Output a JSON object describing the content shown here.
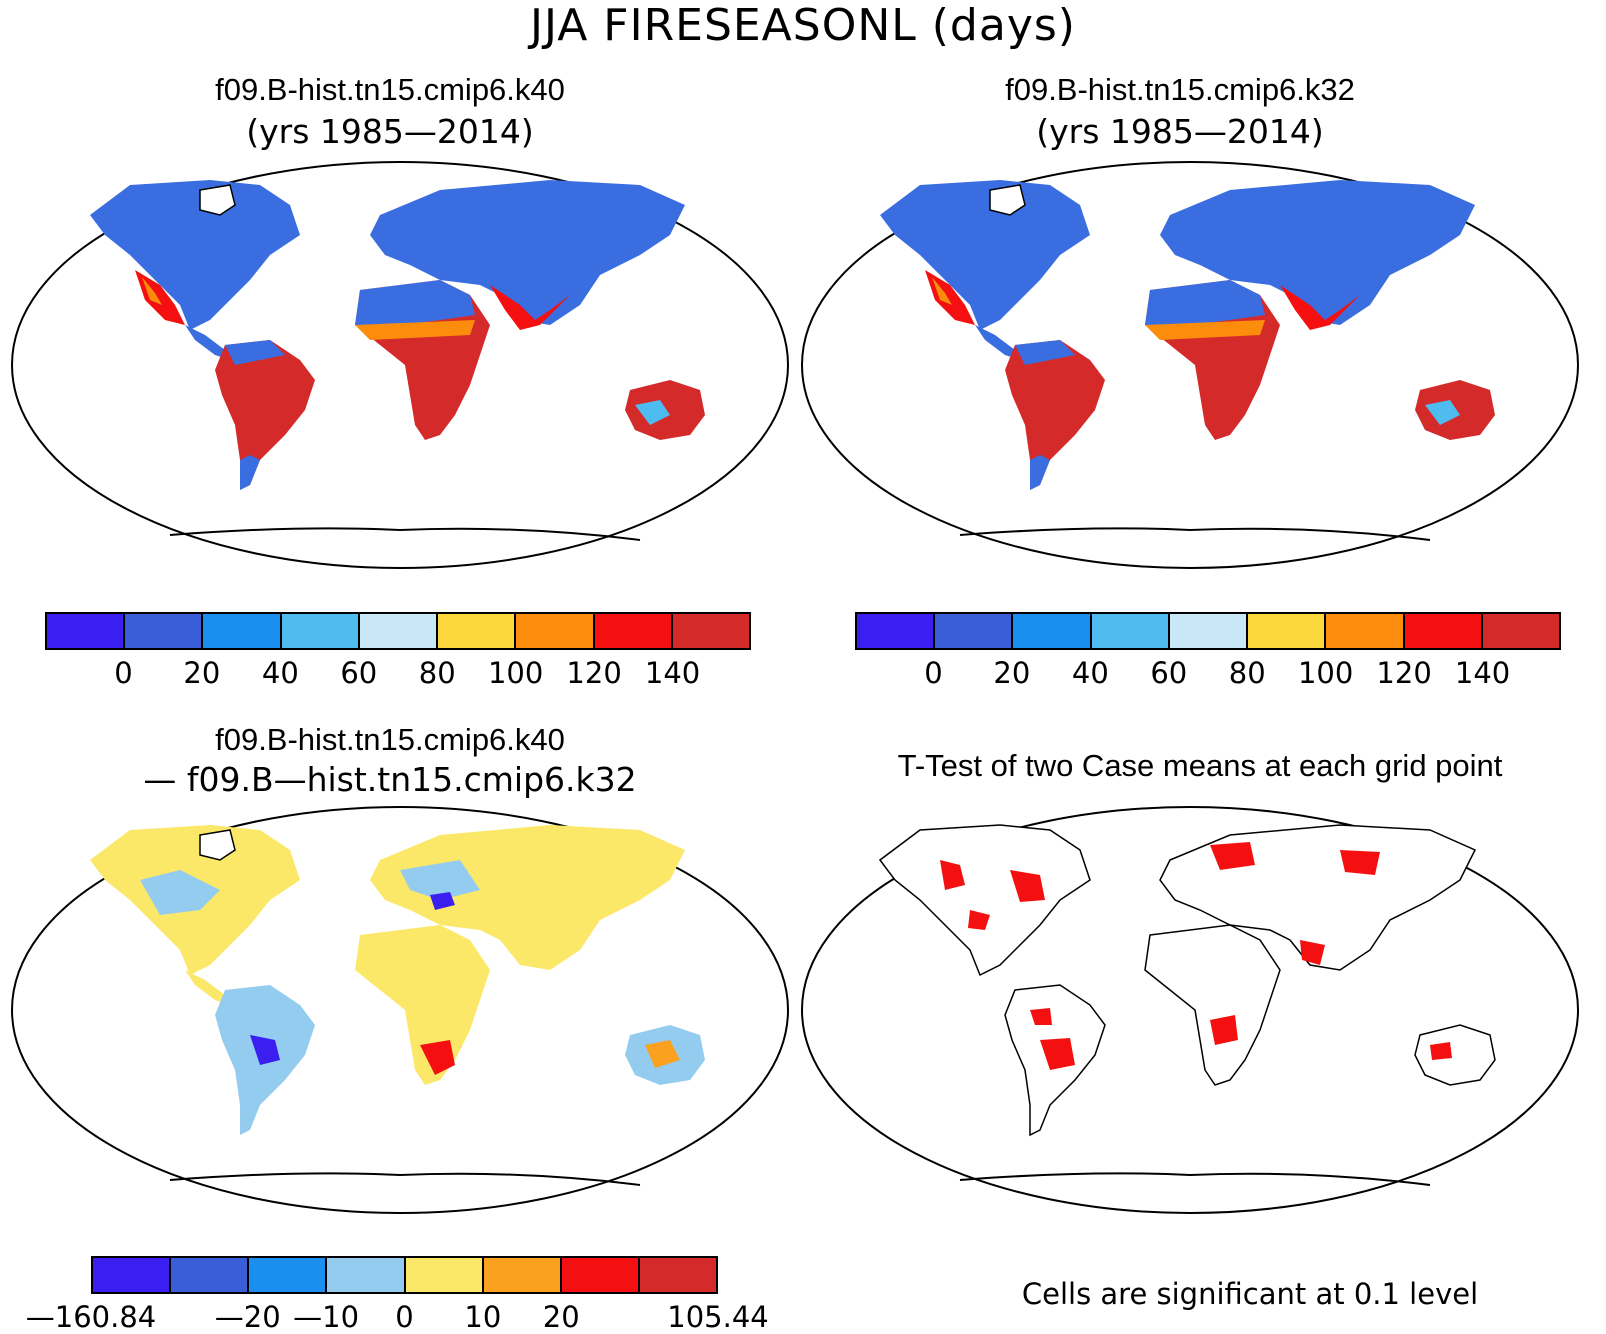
{
  "title": "JJA FIRESEASONL (days)",
  "panels": {
    "k40": {
      "title": "f09.B-hist.tn15.cmip6.k40",
      "subtitle": "(yrs 1985—2014)"
    },
    "k32": {
      "title": "f09.B-hist.tn15.cmip6.k32",
      "subtitle": "(yrs 1985—2014)"
    },
    "diff": {
      "title": "f09.B-hist.tn15.cmip6.k40",
      "subtitle": "— f09.B—hist.tn15.cmip6.k32"
    },
    "ttest": {
      "title": "T-Test of two Case means at each grid point",
      "note": "Cells are significant at 0.1 level"
    }
  },
  "colorbar_abs": {
    "colors": [
      "#3a1ff0",
      "#3a5ed8",
      "#1a8ff0",
      "#4fbcf0",
      "#c8e8f8",
      "#fcd83c",
      "#fc8c0c",
      "#f41010",
      "#d42a2a"
    ],
    "ticks": [
      "0",
      "20",
      "40",
      "60",
      "80",
      "100",
      "120",
      "140"
    ]
  },
  "colorbar_diff": {
    "colors": [
      "#3a1ff0",
      "#3a5ed8",
      "#1a8ff0",
      "#94ccf0",
      "#fce868",
      "#fca020",
      "#f41010",
      "#d42a2a"
    ],
    "ticks": [
      "—160.84",
      "—20",
      "—10",
      "0",
      "10",
      "20",
      "105.44"
    ]
  }
}
